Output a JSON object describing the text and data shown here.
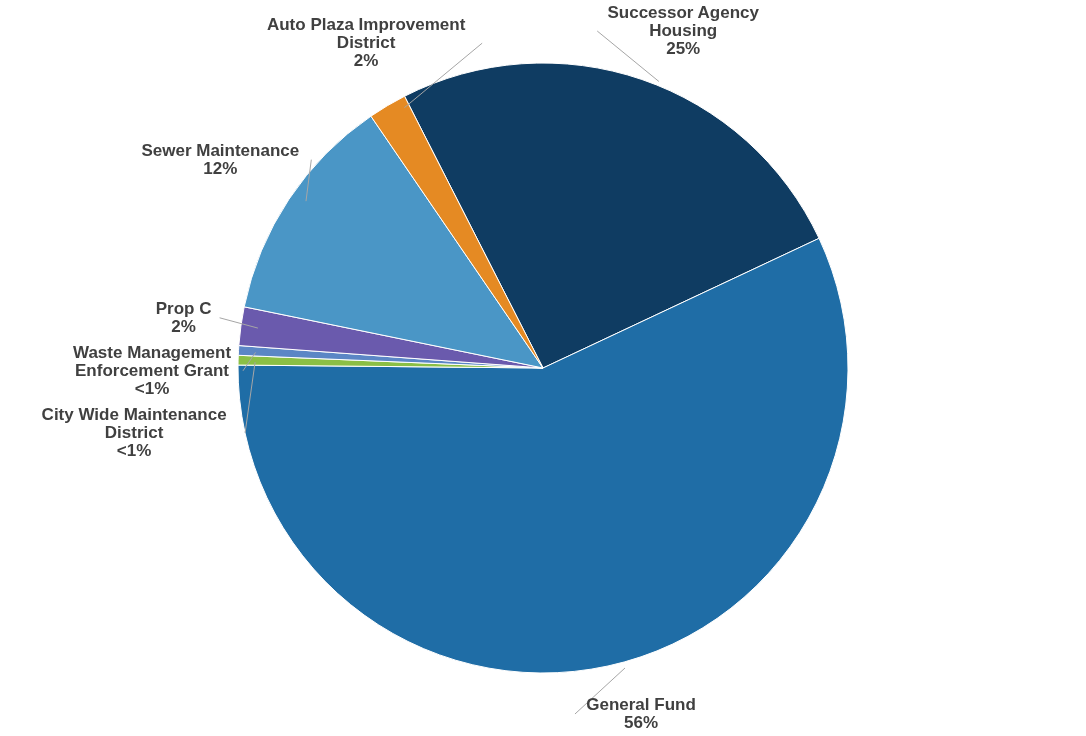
{
  "chart_data": {
    "type": "pie",
    "categories": [
      "Successor Agency Housing",
      "General Fund",
      "City Wide Maintenance District",
      "Waste Management Enforcement Grant",
      "Prop C",
      "Sewer Maintenance",
      "Auto Plaza Improvement District"
    ],
    "values": [
      25,
      56,
      0.5,
      0.5,
      2,
      12,
      2
    ],
    "value_labels": [
      "25%",
      "56%",
      "<1%",
      "<1%",
      "2%",
      "12%",
      "2%"
    ],
    "colors": [
      "#0f3c62",
      "#1f6da6",
      "#8bbf45",
      "#5b86c5",
      "#6a5aad",
      "#4a96c6",
      "#e58a23"
    ]
  }
}
